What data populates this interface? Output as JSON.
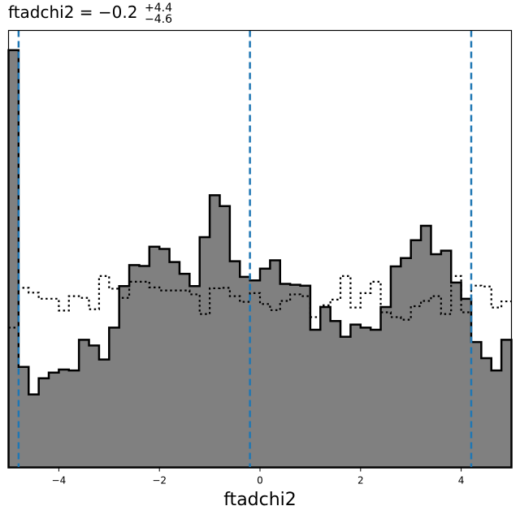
{
  "chart_data": {
    "type": "histogram",
    "title": {
      "prefix": "ftadchi2 = −0.2",
      "upper": "+4.4",
      "lower": "−4.6"
    },
    "xlabel": "ftadchi2",
    "ylabel": "",
    "xlim": [
      -5.0,
      5.0
    ],
    "ylim": [
      0,
      1.0
    ],
    "xticks": [
      -4,
      -2,
      0,
      2,
      4
    ],
    "xtick_labels": [
      "−4",
      "−2",
      "0",
      "2",
      "4"
    ],
    "yticks": [],
    "grid": false,
    "colors": {
      "filled": "#808080",
      "outline": "#000000",
      "quantile_lines": "#1f77b4"
    },
    "bin_edges": [
      -5.0,
      -4.8,
      -4.6,
      -4.4,
      -4.2,
      -4.0,
      -3.8,
      -3.6,
      -3.4,
      -3.2,
      -3.0,
      -2.8,
      -2.6,
      -2.4,
      -2.2,
      -2.0,
      -1.8,
      -1.6,
      -1.4,
      -1.2,
      -1.0,
      -0.8,
      -0.6,
      -0.4,
      -0.2,
      0.0,
      0.2,
      0.4,
      0.6,
      0.8,
      1.0,
      1.2,
      1.4,
      1.6,
      1.8,
      2.0,
      2.2,
      2.4,
      2.6,
      2.8,
      3.0,
      3.2,
      3.4,
      3.6,
      3.8,
      4.0,
      4.2,
      4.4,
      4.6,
      4.8,
      5.0
    ],
    "series": [
      {
        "style": "filled-step",
        "values": [
          0.955,
          0.23,
          0.167,
          0.204,
          0.217,
          0.224,
          0.222,
          0.292,
          0.279,
          0.247,
          0.32,
          0.415,
          0.463,
          0.461,
          0.505,
          0.5,
          0.47,
          0.443,
          0.415,
          0.527,
          0.623,
          0.598,
          0.472,
          0.436,
          0.428,
          0.455,
          0.474,
          0.42,
          0.418,
          0.416,
          0.315,
          0.367,
          0.335,
          0.299,
          0.327,
          0.32,
          0.315,
          0.367,
          0.46,
          0.479,
          0.52,
          0.553,
          0.488,
          0.496,
          0.423,
          0.386,
          0.287,
          0.25,
          0.222,
          0.292
        ]
      },
      {
        "style": "dotted-step",
        "values": [
          0.32,
          0.411,
          0.4,
          0.386,
          0.386,
          0.359,
          0.392,
          0.388,
          0.362,
          0.438,
          0.409,
          0.388,
          0.425,
          0.425,
          0.412,
          0.405,
          0.405,
          0.405,
          0.396,
          0.351,
          0.41,
          0.411,
          0.392,
          0.379,
          0.399,
          0.374,
          0.36,
          0.381,
          0.396,
          0.392,
          0.344,
          0.371,
          0.384,
          0.438,
          0.366,
          0.399,
          0.425,
          0.355,
          0.344,
          0.338,
          0.369,
          0.381,
          0.392,
          0.351,
          0.438,
          0.355,
          0.416,
          0.414,
          0.366,
          0.38
        ]
      }
    ],
    "vlines": [
      -4.8,
      -0.2,
      4.2
    ]
  }
}
